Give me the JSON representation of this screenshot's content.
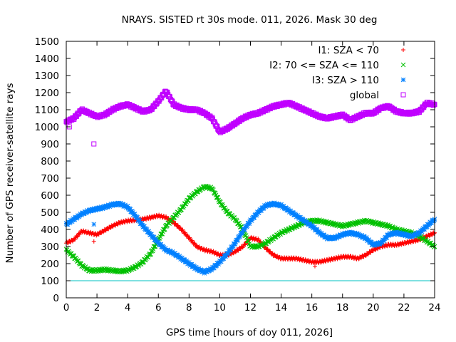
{
  "chart_data": {
    "type": "scatter",
    "title": "NRAYS. SISTED rt 30s mode. 011, 2026. Mask 30 deg",
    "xlabel": "GPS time [hours of doy 011, 2026]",
    "ylabel": "Number of GPS receiver-satellite rays",
    "xlim": [
      0,
      24
    ],
    "ylim": [
      0,
      1500
    ],
    "x_ticks": [
      0,
      2,
      4,
      6,
      8,
      10,
      12,
      14,
      16,
      18,
      20,
      22,
      24
    ],
    "y_ticks": [
      0,
      100,
      200,
      300,
      400,
      500,
      600,
      700,
      800,
      900,
      1000,
      1100,
      1200,
      1300,
      1400,
      1500
    ],
    "legend_position": "top-right",
    "reference_line": {
      "y": 100,
      "color": "#00c0c0"
    },
    "series": [
      {
        "name": "I1: SZA < 70",
        "marker": "+",
        "color": "#ff0000",
        "x": [
          0,
          0.5,
          1,
          1.5,
          2,
          2.5,
          3,
          3.5,
          4,
          4.5,
          5,
          5.5,
          6,
          6.5,
          7,
          7.5,
          8,
          8.5,
          9,
          9.5,
          10,
          10.5,
          11,
          11.5,
          12,
          12.5,
          13,
          13.5,
          14,
          14.5,
          15,
          15.5,
          16,
          16.5,
          17,
          17.5,
          18,
          18.5,
          19,
          19.5,
          20,
          20.5,
          21,
          21.5,
          22,
          22.5,
          23,
          23.5,
          24
        ],
        "values": [
          320,
          340,
          390,
          380,
          370,
          395,
          420,
          440,
          450,
          455,
          460,
          470,
          480,
          470,
          440,
          400,
          350,
          300,
          280,
          270,
          250,
          250,
          270,
          300,
          350,
          340,
          290,
          250,
          230,
          230,
          230,
          220,
          210,
          210,
          220,
          230,
          240,
          240,
          230,
          250,
          280,
          300,
          310,
          310,
          320,
          330,
          340,
          360,
          380
        ]
      },
      {
        "name": "I2: 70 <= SZA <= 110",
        "marker": "x",
        "color": "#00c000",
        "x": [
          0,
          0.5,
          1,
          1.5,
          2,
          2.5,
          3,
          3.5,
          4,
          4.5,
          5,
          5.5,
          6,
          6.5,
          7,
          7.5,
          8,
          8.5,
          9,
          9.5,
          10,
          10.5,
          11,
          11.5,
          12,
          12.5,
          13,
          13.5,
          14,
          14.5,
          15,
          15.5,
          16,
          16.5,
          17,
          17.5,
          18,
          18.5,
          19,
          19.5,
          20,
          20.5,
          21,
          21.5,
          22,
          22.5,
          23,
          23.5,
          24
        ],
        "values": [
          280,
          240,
          190,
          160,
          160,
          165,
          160,
          155,
          160,
          180,
          210,
          260,
          340,
          420,
          470,
          520,
          580,
          620,
          650,
          640,
          560,
          500,
          460,
          400,
          300,
          300,
          320,
          350,
          380,
          400,
          420,
          440,
          450,
          450,
          440,
          430,
          420,
          430,
          440,
          450,
          440,
          430,
          420,
          400,
          390,
          380,
          360,
          330,
          300
        ]
      },
      {
        "name": "I3: SZA > 110",
        "marker": "*",
        "color": "#0080ff",
        "x": [
          0,
          0.5,
          1,
          1.5,
          2,
          2.5,
          3,
          3.5,
          4,
          4.5,
          5,
          5.5,
          6,
          6.5,
          7,
          7.5,
          8,
          8.5,
          9,
          9.5,
          10,
          10.5,
          11,
          11.5,
          12,
          12.5,
          13,
          13.5,
          14,
          14.5,
          15,
          15.5,
          16,
          16.5,
          17,
          17.5,
          18,
          18.5,
          19,
          19.5,
          20,
          20.5,
          21,
          21.5,
          22,
          22.5,
          23,
          23.5,
          24
        ],
        "values": [
          430,
          460,
          490,
          510,
          520,
          530,
          545,
          550,
          530,
          480,
          420,
          370,
          320,
          280,
          260,
          230,
          200,
          170,
          150,
          170,
          210,
          260,
          320,
          390,
          450,
          500,
          540,
          550,
          540,
          510,
          480,
          450,
          420,
          380,
          350,
          350,
          370,
          380,
          370,
          350,
          310,
          320,
          370,
          380,
          370,
          360,
          380,
          420,
          460
        ]
      },
      {
        "name": "global",
        "marker": "square",
        "color": "#c000ff",
        "x": [
          0,
          0.5,
          1,
          1.5,
          2,
          2.5,
          3,
          3.5,
          4,
          4.5,
          5,
          5.5,
          6,
          6.5,
          7,
          7.5,
          8,
          8.5,
          9,
          9.5,
          10,
          10.5,
          11,
          11.5,
          12,
          12.5,
          13,
          13.5,
          14,
          14.5,
          15,
          15.5,
          16,
          16.5,
          17,
          17.5,
          18,
          18.5,
          19,
          19.5,
          20,
          20.5,
          21,
          21.5,
          22,
          22.5,
          23,
          23.5,
          24
        ],
        "values": [
          1030,
          1050,
          1100,
          1080,
          1060,
          1070,
          1100,
          1120,
          1130,
          1110,
          1090,
          1100,
          1150,
          1210,
          1130,
          1110,
          1100,
          1100,
          1080,
          1050,
          970,
          990,
          1020,
          1050,
          1070,
          1080,
          1100,
          1120,
          1130,
          1140,
          1120,
          1100,
          1080,
          1060,
          1050,
          1060,
          1070,
          1040,
          1060,
          1080,
          1080,
          1110,
          1120,
          1090,
          1080,
          1080,
          1090,
          1140,
          1130
        ]
      }
    ],
    "outliers": [
      {
        "series": "global",
        "x": 1.8,
        "value": 900
      },
      {
        "series": "global",
        "x": 0.2,
        "value": 1000
      },
      {
        "series": "I3: SZA > 110",
        "x": 1.8,
        "value": 430
      },
      {
        "series": "I1: SZA < 70",
        "x": 1.8,
        "value": 330
      },
      {
        "series": "I1: SZA < 70",
        "x": 16.2,
        "value": 185
      }
    ]
  }
}
